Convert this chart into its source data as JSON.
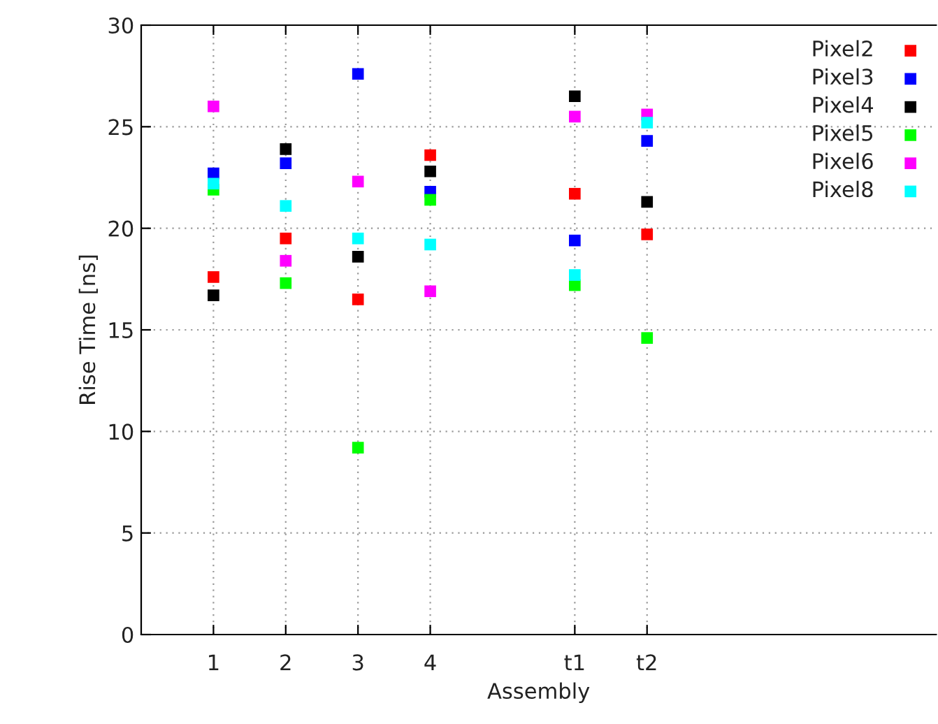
{
  "chart_data": {
    "type": "scatter",
    "xlabel": "Assembly",
    "ylabel": "Rise Time [ns]",
    "x": [
      1,
      2,
      3,
      4,
      6,
      7
    ],
    "xlim": [
      0,
      11
    ],
    "xticks": [
      {
        "value": 1,
        "label": "1"
      },
      {
        "value": 2,
        "label": "2"
      },
      {
        "value": 3,
        "label": "3"
      },
      {
        "value": 4,
        "label": "4"
      },
      {
        "value": 6,
        "label": "t1"
      },
      {
        "value": 7,
        "label": "t2"
      }
    ],
    "ylim": [
      0,
      30
    ],
    "yticks": [
      0,
      5,
      10,
      15,
      20,
      25,
      30
    ],
    "grid": true,
    "legend": "top right",
    "marker": "square",
    "series": [
      {
        "name": "Pixel2",
        "color": "#ff0000",
        "values": [
          17.6,
          19.5,
          16.5,
          23.6,
          21.7,
          19.7
        ]
      },
      {
        "name": "Pixel3",
        "color": "#0000ff",
        "values": [
          22.7,
          23.2,
          27.6,
          21.8,
          19.4,
          24.3
        ]
      },
      {
        "name": "Pixel4",
        "color": "#000000",
        "values": [
          16.7,
          23.9,
          18.6,
          22.8,
          26.5,
          21.3
        ]
      },
      {
        "name": "Pixel5",
        "color": "#00ff00",
        "values": [
          21.9,
          17.3,
          9.2,
          21.4,
          17.2,
          14.6
        ]
      },
      {
        "name": "Pixel6",
        "color": "#ff00ff",
        "values": [
          26.0,
          18.4,
          22.3,
          16.9,
          25.5,
          25.6
        ]
      },
      {
        "name": "Pixel8",
        "color": "#00ffff",
        "values": [
          22.2,
          21.1,
          19.5,
          19.2,
          17.7,
          25.2
        ]
      }
    ]
  }
}
